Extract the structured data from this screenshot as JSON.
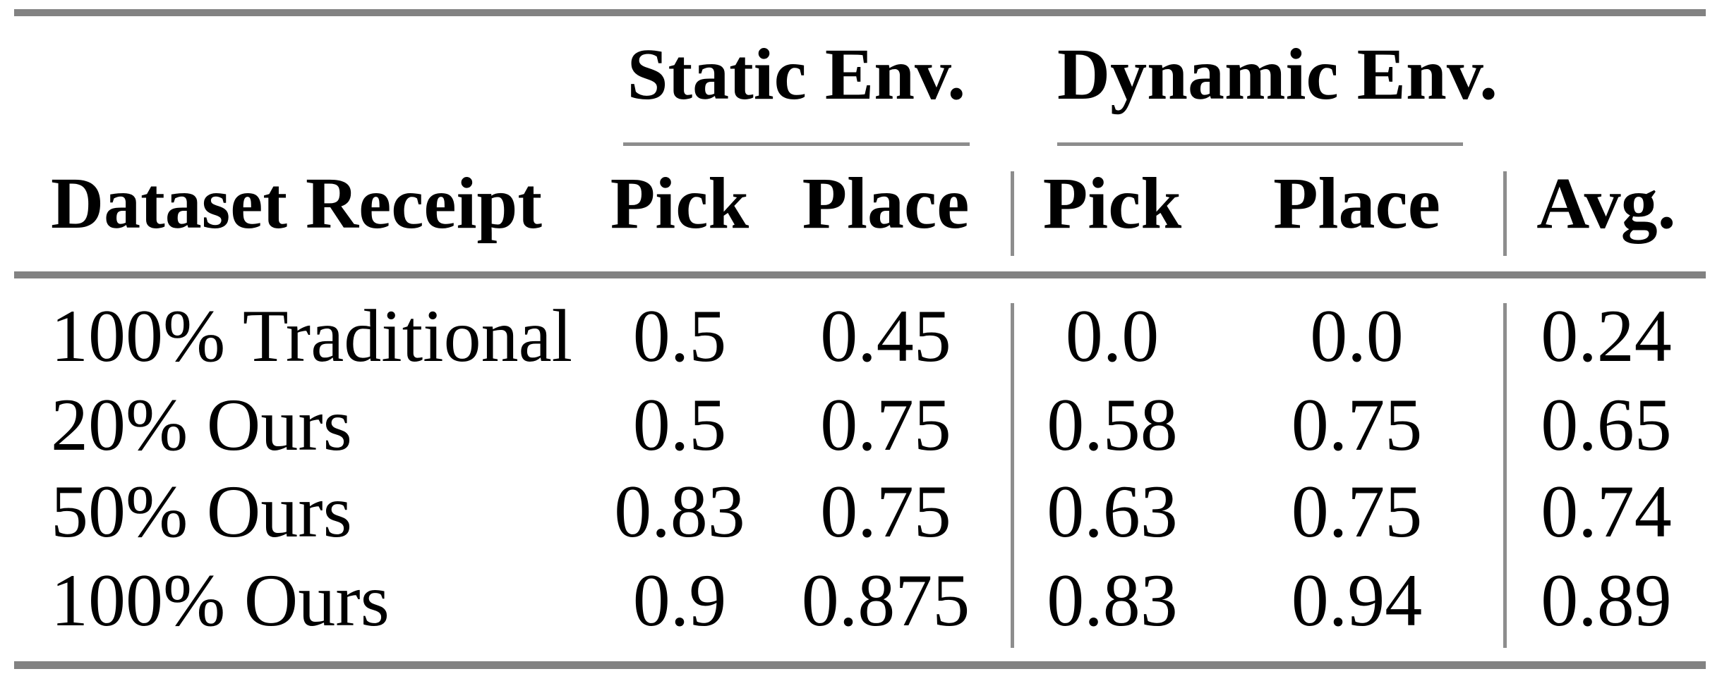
{
  "table": {
    "group_headers": [
      {
        "label": "Static Env."
      },
      {
        "label": "Dynamic Env."
      }
    ],
    "column_headers": [
      "Dataset Receipt",
      "Pick",
      "Place",
      "Pick",
      "Place",
      "Avg."
    ],
    "rows": [
      [
        "100% Traditional",
        "0.5",
        "0.45",
        "0.0",
        "0.0",
        "0.24"
      ],
      [
        "20% Ours",
        "0.5",
        "0.75",
        "0.58",
        "0.75",
        "0.65"
      ],
      [
        "50% Ours",
        "0.83",
        "0.75",
        "0.63",
        "0.75",
        "0.74"
      ],
      [
        "100% Ours",
        "0.9",
        "0.875",
        "0.83",
        "0.94",
        "0.89"
      ]
    ]
  },
  "colors": {
    "rule_gray": "#828282",
    "thin_rule_gray": "#8d8d8d",
    "text_black": "#000000",
    "background": "#ffffff"
  }
}
